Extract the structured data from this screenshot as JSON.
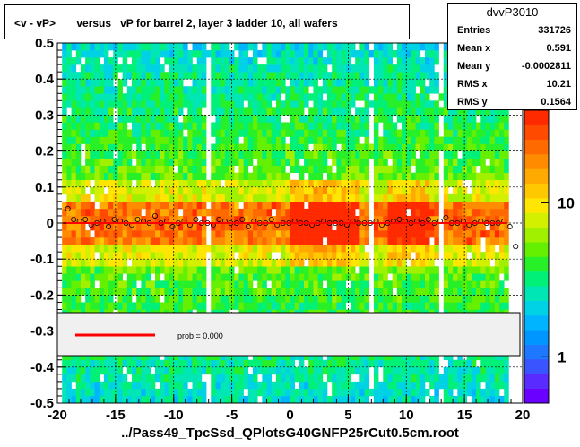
{
  "title": "<v - vP>       versus   vP for barrel 2, layer 3 ladder 10, all wafers",
  "stats": {
    "name": "dvvP3010",
    "rows": [
      {
        "key": "Entries",
        "value": "331726"
      },
      {
        "key": "Mean x",
        "value": "0.591"
      },
      {
        "key": "Mean y",
        "value": "-0.0002811"
      },
      {
        "key": "RMS x",
        "value": "10.21"
      },
      {
        "key": "RMS y",
        "value": "0.1564"
      }
    ]
  },
  "legend": {
    "label": "prob = 0.000",
    "line_color": "#ff0000"
  },
  "footer": "../Pass49_TpcSsd_QPlotsG40GNFP25rCut0.5cm.root",
  "chart_data": {
    "type": "heatmap",
    "title": "<v - vP>       versus   vP for barrel 2, layer 3 ladder 10, all wafers",
    "xlim": [
      -20,
      20
    ],
    "ylim": [
      -0.5,
      0.5
    ],
    "x_ticks": [
      -20,
      -15,
      -10,
      -5,
      0,
      5,
      10,
      15,
      20
    ],
    "y_ticks": [
      -0.5,
      -0.4,
      -0.3,
      -0.2,
      -0.1,
      0,
      0.1,
      0.2,
      0.3,
      0.4,
      0.5
    ],
    "y_tick_labels": [
      "-0.5",
      "-0.4",
      "-0.3",
      "-0.2",
      "-0.1",
      "0",
      "0.1",
      "0.2",
      "0.3",
      "0.4",
      "0.5"
    ],
    "z_scale": "log",
    "z_tick_labels": [
      "1",
      "10"
    ],
    "z_ticks": [
      1,
      10
    ],
    "grid": true,
    "fit_line": {
      "color": "#ff0000",
      "slope": 0,
      "intercept": 0
    },
    "profile_points": {
      "x": [
        -19.1,
        -18.6,
        -18.1,
        -17.6,
        -17.1,
        -16.6,
        -16.1,
        -15.6,
        -15.1,
        -14.6,
        -14.1,
        -13.6,
        -13.1,
        -12.6,
        -12.1,
        -11.6,
        -11.1,
        -10.6,
        -10.1,
        -9.6,
        -9.1,
        -8.6,
        -8.1,
        -7.6,
        -7.1,
        -6.6,
        -6.1,
        -5.6,
        -5.1,
        -4.6,
        -4.1,
        -3.6,
        -3.1,
        -2.6,
        -2.1,
        -1.6,
        -1.1,
        -0.6,
        -0.1,
        0.4,
        0.9,
        1.4,
        1.9,
        2.4,
        2.9,
        3.4,
        3.9,
        4.4,
        4.9,
        5.4,
        5.9,
        6.4,
        6.9,
        7.4,
        7.9,
        8.4,
        8.9,
        9.4,
        9.9,
        10.4,
        10.9,
        11.4,
        11.9,
        12.4,
        12.9,
        13.4,
        13.9,
        14.4,
        14.9,
        15.4,
        15.9,
        16.4,
        16.9,
        17.4,
        17.9,
        18.4,
        18.9,
        19.4
      ],
      "y": [
        0.04,
        0.01,
        0.005,
        0.01,
        -0.005,
        0.0,
        0.005,
        -0.01,
        0.01,
        0.005,
        0.0,
        -0.005,
        0.01,
        0.005,
        0.0,
        0.02,
        0.0,
        0.005,
        -0.01,
        0.0,
        0.005,
        -0.005,
        0.01,
        0.0,
        0.0,
        -0.005,
        0.01,
        0.005,
        0.0,
        0.0,
        0.01,
        -0.01,
        0.005,
        0.0,
        0.0,
        0.01,
        -0.005,
        0.0,
        0.0,
        0.005,
        0.0,
        0.0,
        -0.005,
        0.0,
        0.005,
        0.0,
        0.0,
        0.0,
        -0.005,
        0.005,
        0.0,
        0.0,
        0.0,
        0.005,
        -0.005,
        0.0,
        0.005,
        0.01,
        0.005,
        0.0,
        0.005,
        0.0,
        0.01,
        0.0,
        0.005,
        0.015,
        0.0,
        0.0,
        0.005,
        -0.005,
        0.0,
        0.005,
        0.0,
        0.0,
        0.0,
        0.005,
        -0.01,
        -0.065
      ]
    }
  }
}
